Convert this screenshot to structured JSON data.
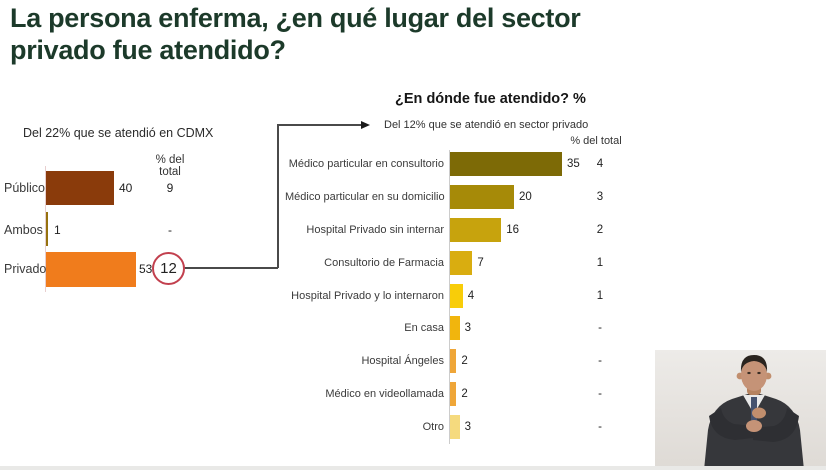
{
  "slide": {
    "title_line1": "La persona enferma, ¿en qué lugar del sector",
    "title_line2": "privado fue atendido?",
    "title_color": "#1c3a2a"
  },
  "left_chart": {
    "subtitle": "Del 22% que se atendió en CDMX",
    "col_header": "% del total",
    "rows": [
      {
        "label": "Público",
        "value": 40,
        "pct_total": "9",
        "color": "#8a3b0b"
      },
      {
        "label": "Ambos",
        "value": 1,
        "pct_total": "-",
        "color": "#96720e"
      },
      {
        "label": "Privado",
        "value": 53,
        "pct_total": "12",
        "color": "#f07c1c"
      }
    ],
    "highlight_value": "12",
    "highlight_circle_color": "#c2404e"
  },
  "right_chart": {
    "title": "¿En dónde fue atendido? %",
    "subtitle": "Del 12% que se atendió en sector privado",
    "col_header": "% del total",
    "rows": [
      {
        "label": "Médico particular en consultorio",
        "value": 35,
        "pct_total": "4",
        "color": "#7d6a06"
      },
      {
        "label": "Médico particular en su domicilio",
        "value": 20,
        "pct_total": "3",
        "color": "#a68a08"
      },
      {
        "label": "Hospital Privado sin internar",
        "value": 16,
        "pct_total": "2",
        "color": "#c7a30d"
      },
      {
        "label": "Consultorio de Farmacia",
        "value": 7,
        "pct_total": "1",
        "color": "#d9ad10"
      },
      {
        "label": "Hospital Privado y lo internaron",
        "value": 4,
        "pct_total": "1",
        "color": "#f8cd09"
      },
      {
        "label": "En casa",
        "value": 3,
        "pct_total": "-",
        "color": "#f1b50d"
      },
      {
        "label": "Hospital Ángeles",
        "value": 2,
        "pct_total": "-",
        "color": "#efa638"
      },
      {
        "label": "Médico en videollamada",
        "value": 2,
        "pct_total": "-",
        "color": "#efa638"
      },
      {
        "label": "Otro",
        "value": 3,
        "pct_total": "-",
        "color": "#f5da7e"
      }
    ]
  },
  "chart_data": [
    {
      "type": "bar",
      "orientation": "horizontal",
      "title": "Del 22% que se atendió en CDMX",
      "categories": [
        "Público",
        "Ambos",
        "Privado"
      ],
      "values": [
        40,
        1,
        53
      ],
      "extra_column": {
        "header": "% del total",
        "values": [
          "9",
          "-",
          "12"
        ]
      },
      "annotations": [
        "value 12 for Privado is circled and linked by arrow to the right chart"
      ],
      "xlim": [
        0,
        60
      ],
      "grid": false,
      "bar_colors": [
        "#8a3b0b",
        "#96720e",
        "#f07c1c"
      ]
    },
    {
      "type": "bar",
      "orientation": "horizontal",
      "title": "¿En dónde fue atendido? %",
      "subtitle": "Del 12% que se atendió en sector privado",
      "categories": [
        "Médico particular en consultorio",
        "Médico particular en su domicilio",
        "Hospital Privado sin internar",
        "Consultorio de Farmacia",
        "Hospital Privado y lo internaron",
        "En casa",
        "Hospital Ángeles",
        "Médico en videollamada",
        "Otro"
      ],
      "values": [
        35,
        20,
        16,
        7,
        4,
        3,
        2,
        2,
        3
      ],
      "extra_column": {
        "header": "% del total",
        "values": [
          "4",
          "3",
          "2",
          "1",
          "1",
          "-",
          "-",
          "-",
          "-"
        ]
      },
      "xlim": [
        0,
        40
      ],
      "grid": false,
      "bar_colors": [
        "#7d6a06",
        "#a68a08",
        "#c7a30d",
        "#d9ad10",
        "#f8cd09",
        "#f1b50d",
        "#efa638",
        "#efa638",
        "#f5da7e"
      ]
    }
  ]
}
